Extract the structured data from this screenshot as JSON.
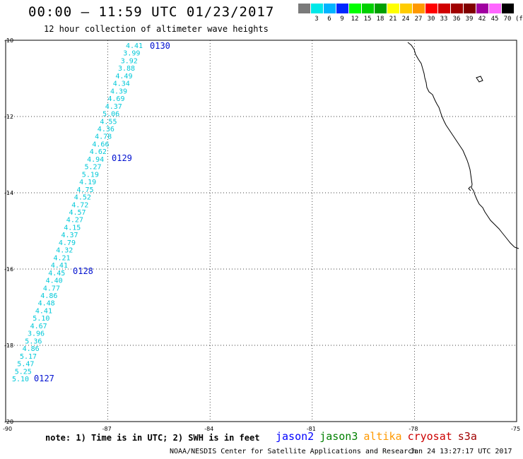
{
  "title": "00:00 – 11:59 UTC 01/23/2017",
  "subtitle": "12 hour collection of altimeter wave heights",
  "legend": {
    "unit": "(ft)",
    "bins": [
      {
        "label": "",
        "color": "#7a7a7a"
      },
      {
        "label": "3",
        "color": "#00e8e8"
      },
      {
        "label": "6",
        "color": "#00b4ff"
      },
      {
        "label": "9",
        "color": "#0028ff"
      },
      {
        "label": "12",
        "color": "#00ff00"
      },
      {
        "label": "15",
        "color": "#00d000"
      },
      {
        "label": "18",
        "color": "#00a000"
      },
      {
        "label": "21",
        "color": "#ffff00"
      },
      {
        "label": "24",
        "color": "#ffcc00"
      },
      {
        "label": "27",
        "color": "#ff9900"
      },
      {
        "label": "30",
        "color": "#ff0000"
      },
      {
        "label": "33",
        "color": "#d00000"
      },
      {
        "label": "36",
        "color": "#a00000"
      },
      {
        "label": "39",
        "color": "#800000"
      },
      {
        "label": "42",
        "color": "#a000a0"
      },
      {
        "label": "45",
        "color": "#ff66ff"
      },
      {
        "label": "70",
        "color": "#000000"
      }
    ]
  },
  "axes": {
    "lat_labels": [
      "-10",
      "-12",
      "-14",
      "-16",
      "-18",
      "-20"
    ],
    "lon_labels": [
      "-90",
      "-87",
      "-84",
      "-81",
      "-78",
      "-75"
    ]
  },
  "track": {
    "wave_heights": [
      "4.41",
      "3.99",
      "3.92",
      "3.88",
      "4.49",
      "4.34",
      "4.39",
      "4.69",
      "4.37",
      "5.06",
      "4.55",
      "4.36",
      "4.78",
      "4.66",
      "4.62",
      "4.94",
      "5.27",
      "5.19",
      "4.19",
      "4.75",
      "4.52",
      "4.72",
      "4.57",
      "4.27",
      "4.15",
      "4.37",
      "4.79",
      "4.32",
      "4.21",
      "4.41",
      "4.45",
      "4.40",
      "4.77",
      "4.86",
      "4.48",
      "4.41",
      "5.10",
      "4.67",
      "3.96",
      "5.36",
      "4.86",
      "5.17",
      "5.47",
      "5.25",
      "5.10"
    ],
    "pass_times": [
      "0130",
      "0129",
      "0128",
      "0127"
    ]
  },
  "note": "note: 1) Time is in UTC; 2) SWH is in feet",
  "satellites": [
    {
      "name": "jason2",
      "color": "#0000ff"
    },
    {
      "name": "jason3",
      "color": "#008000"
    },
    {
      "name": "altika",
      "color": "#ff9900"
    },
    {
      "name": "cryosat",
      "color": "#cc0000"
    },
    {
      "name": "s3a",
      "color": "#a00000"
    }
  ],
  "credit": "NOAA/NESDIS Center for Satellite Applications and Research",
  "timestamp": "Jan 24 13:27:17 UTC 2017"
}
